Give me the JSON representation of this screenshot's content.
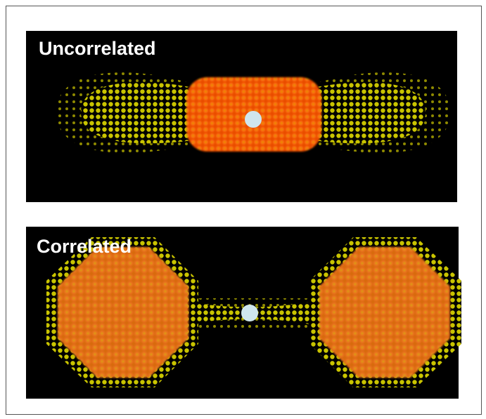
{
  "panels": [
    {
      "label": "Uncorrelated"
    },
    {
      "label": "Correlated"
    }
  ]
}
